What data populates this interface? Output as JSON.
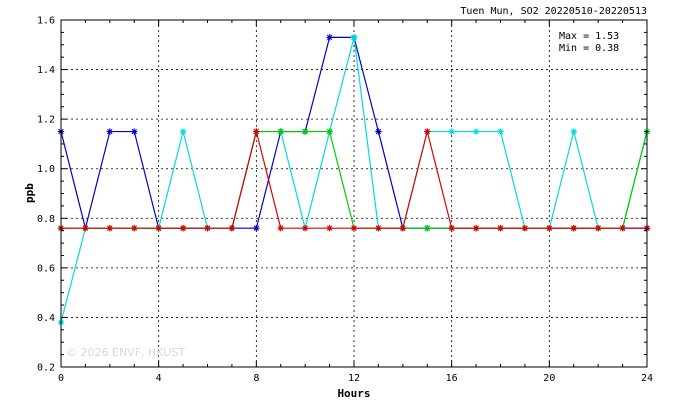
{
  "chart_data": {
    "type": "line",
    "title": "Tuen Mun, SO2 20220510-20220513",
    "xlabel": "Hours",
    "ylabel": "ppb",
    "xlim": [
      0,
      24
    ],
    "ylim": [
      0.2,
      1.6
    ],
    "x_ticks": [
      "0",
      "4",
      "8",
      "12",
      "16",
      "20",
      "24"
    ],
    "y_ticks": [
      "0.2",
      "0.4",
      "0.6",
      "0.8",
      "1.0",
      "1.2",
      "1.4",
      "1.6"
    ],
    "grid": true,
    "stats": {
      "max": "Max = 1.53",
      "min": "Min = 0.38"
    },
    "watermark": "© 2026  ENVF, HKUST",
    "x": [
      0,
      1,
      2,
      3,
      4,
      5,
      6,
      7,
      8,
      9,
      10,
      11,
      12,
      13,
      14,
      15,
      16,
      17,
      18,
      19,
      20,
      21,
      22,
      23,
      24
    ],
    "series": [
      {
        "color": "#0000cc",
        "values": [
          1.15,
          0.76,
          1.15,
          1.15,
          0.76,
          0.76,
          0.76,
          0.76,
          0.76,
          1.15,
          1.15,
          1.53,
          1.53,
          1.15,
          0.76,
          0.76,
          0.76,
          0.76,
          0.76,
          0.76,
          0.76,
          0.76,
          0.76,
          0.76,
          0.76
        ]
      },
      {
        "color": "#00dddd",
        "values": [
          0.38,
          0.76,
          0.76,
          0.76,
          0.76,
          1.15,
          0.76,
          0.76,
          1.15,
          1.15,
          0.76,
          1.15,
          1.53,
          0.76,
          0.76,
          1.15,
          1.15,
          1.15,
          1.15,
          0.76,
          0.76,
          1.15,
          0.76,
          0.76,
          1.15
        ]
      },
      {
        "color": "#00cc00",
        "values": [
          0.76,
          0.76,
          0.76,
          0.76,
          0.76,
          0.76,
          0.76,
          0.76,
          1.15,
          1.15,
          1.15,
          1.15,
          0.76,
          0.76,
          0.76,
          0.76,
          0.76,
          0.76,
          0.76,
          0.76,
          0.76,
          0.76,
          0.76,
          0.76,
          1.15
        ]
      },
      {
        "color": "#dd0000",
        "values": [
          0.76,
          0.76,
          0.76,
          0.76,
          0.76,
          0.76,
          0.76,
          0.76,
          1.15,
          0.76,
          0.76,
          0.76,
          0.76,
          0.76,
          0.76,
          1.15,
          0.76,
          0.76,
          0.76,
          0.76,
          0.76,
          0.76,
          0.76,
          0.76,
          0.76
        ]
      }
    ]
  }
}
